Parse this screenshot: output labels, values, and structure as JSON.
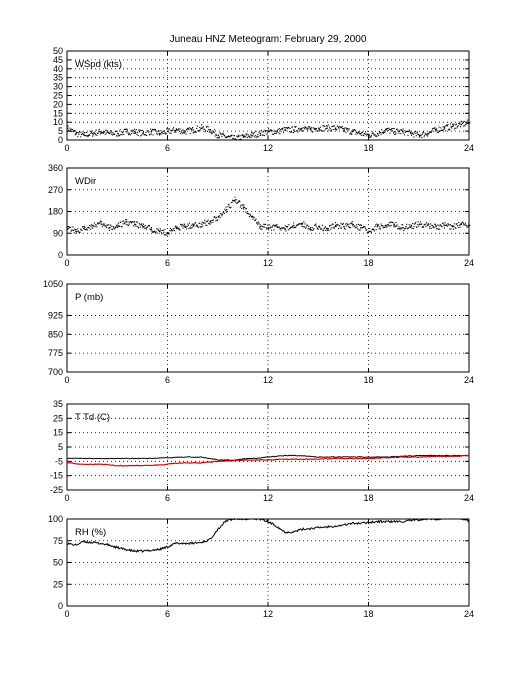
{
  "title": "Juneau HNZ Meteogram:  February 29, 2000",
  "colors": {
    "black": "#000000",
    "red": "#e00000",
    "grid": "#000000"
  },
  "chart_data": [
    {
      "type": "scatter",
      "label": "WSpd (kts)",
      "xlim": [
        0,
        24
      ],
      "xticks": [
        0,
        6,
        12,
        18,
        24
      ],
      "ylim": [
        0,
        50
      ],
      "yticks": [
        0,
        5,
        10,
        15,
        20,
        25,
        30,
        35,
        40,
        45,
        50
      ],
      "grid": true,
      "series": [
        {
          "color": "#000000",
          "style": "dots",
          "x": [
            0,
            0.5,
            1,
            1.5,
            2,
            2.5,
            3,
            3.5,
            4,
            4.5,
            5,
            5.5,
            6,
            6.5,
            7,
            7.5,
            8,
            8.5,
            9,
            9.5,
            10,
            10.5,
            11,
            11.5,
            12,
            12.5,
            13,
            13.5,
            14,
            14.5,
            15,
            15.5,
            16,
            16.5,
            17,
            17.5,
            18,
            18.5,
            19,
            19.5,
            20,
            20.5,
            21,
            21.5,
            22,
            22.5,
            23,
            23.5,
            24
          ],
          "y": [
            7,
            4,
            3,
            4,
            5,
            4,
            4,
            5,
            5,
            4,
            5,
            4,
            5,
            6,
            5,
            6,
            7,
            6,
            3,
            2,
            1,
            2,
            3,
            4,
            5,
            5,
            6,
            6,
            7,
            6,
            7,
            7,
            7,
            6,
            5,
            4,
            3,
            4,
            6,
            5,
            5,
            4,
            3,
            4,
            6,
            7,
            8,
            9,
            10
          ]
        }
      ]
    },
    {
      "type": "scatter",
      "label": "WDir",
      "xlim": [
        0,
        24
      ],
      "xticks": [
        0,
        6,
        12,
        18,
        24
      ],
      "ylim": [
        0,
        360
      ],
      "yticks": [
        0,
        90,
        180,
        270,
        360
      ],
      "grid": true,
      "series": [
        {
          "color": "#000000",
          "style": "dots",
          "x": [
            0,
            0.5,
            1,
            1.5,
            2,
            2.5,
            3,
            3.5,
            4,
            4.5,
            5,
            5.5,
            6,
            6.5,
            7,
            7.5,
            8,
            8.5,
            9,
            9.5,
            10,
            10.5,
            11,
            11.5,
            12,
            12.5,
            13,
            13.5,
            14,
            14.5,
            15,
            15.5,
            16,
            16.5,
            17,
            17.5,
            18,
            18.5,
            19,
            19.5,
            20,
            20.5,
            21,
            21.5,
            22,
            22.5,
            23,
            23.5,
            24
          ],
          "y": [
            120,
            100,
            110,
            125,
            130,
            115,
            120,
            140,
            130,
            120,
            110,
            100,
            95,
            115,
            120,
            125,
            130,
            140,
            160,
            190,
            230,
            200,
            160,
            120,
            115,
            120,
            110,
            125,
            130,
            115,
            120,
            110,
            125,
            120,
            130,
            115,
            100,
            120,
            125,
            130,
            115,
            120,
            130,
            125,
            120,
            125,
            120,
            130,
            125
          ]
        }
      ]
    },
    {
      "type": "line",
      "label": "P (mb)",
      "xlim": [
        0,
        24
      ],
      "xticks": [
        0,
        6,
        12,
        18,
        24
      ],
      "ylim": [
        700,
        1050
      ],
      "yticks": [
        700,
        775,
        850,
        925,
        1050
      ],
      "grid": true,
      "series": []
    },
    {
      "type": "line",
      "label": "T Td (C)",
      "xlim": [
        0,
        24
      ],
      "xticks": [
        0,
        6,
        12,
        18,
        24
      ],
      "ylim": [
        -25,
        35
      ],
      "yticks": [
        -25,
        -15,
        -5,
        5,
        15,
        25,
        35
      ],
      "grid": true,
      "series": [
        {
          "color": "#000000",
          "style": "line",
          "x": [
            0,
            1,
            2,
            3,
            4,
            5,
            6,
            7,
            8,
            9,
            10,
            11,
            12,
            13,
            14,
            15,
            16,
            17,
            18,
            19,
            20,
            21,
            22,
            23,
            24
          ],
          "y": [
            -3,
            -3,
            -3,
            -3,
            -3,
            -3,
            -2.5,
            -2,
            -2,
            -4,
            -4,
            -3,
            -2,
            -1,
            -1,
            -2,
            -2,
            -2,
            -2,
            -2,
            -1.5,
            -1,
            -1,
            -1,
            -1
          ]
        },
        {
          "color": "#e00000",
          "style": "line",
          "x": [
            0,
            1,
            2,
            3,
            4,
            5,
            6,
            7,
            8,
            9,
            10,
            11,
            12,
            13,
            14,
            15,
            16,
            17,
            18,
            19,
            20,
            21,
            22,
            23,
            24
          ],
          "y": [
            -6,
            -7,
            -7,
            -8,
            -8,
            -8,
            -7,
            -6,
            -6,
            -5,
            -4.5,
            -4,
            -4,
            -3.5,
            -3.5,
            -3.5,
            -3,
            -3,
            -3,
            -2.5,
            -2,
            -2,
            -1.5,
            -1.5,
            -1
          ]
        }
      ]
    },
    {
      "type": "line",
      "label": "RH (%)",
      "xlim": [
        0,
        24
      ],
      "xticks": [
        0,
        6,
        12,
        18,
        24
      ],
      "ylim": [
        0,
        100
      ],
      "yticks": [
        0,
        25,
        50,
        75,
        100
      ],
      "grid": true,
      "series": [
        {
          "color": "#000000",
          "style": "line",
          "x": [
            0,
            0.5,
            1,
            1.5,
            2,
            2.5,
            3,
            3.5,
            4,
            4.5,
            5,
            5.5,
            6,
            6.5,
            7,
            7.5,
            8,
            8.5,
            9,
            9.5,
            10,
            10.5,
            11,
            11.5,
            12,
            12.5,
            13,
            13.5,
            14,
            14.5,
            15,
            15.5,
            16,
            16.5,
            17,
            17.5,
            18,
            18.5,
            19,
            19.5,
            20,
            20.5,
            21,
            21.5,
            22,
            22.5,
            23,
            23.5,
            24
          ],
          "y": [
            72,
            70,
            74,
            73,
            72,
            70,
            67,
            65,
            63,
            63,
            64,
            65,
            68,
            72,
            72,
            72,
            73,
            76,
            88,
            98,
            100,
            100,
            100,
            100,
            97,
            92,
            85,
            85,
            88,
            89,
            90,
            91,
            92,
            93,
            95,
            95,
            96,
            97,
            97,
            97,
            97,
            98,
            99,
            100,
            100,
            100,
            null,
            100,
            98
          ]
        }
      ]
    }
  ]
}
